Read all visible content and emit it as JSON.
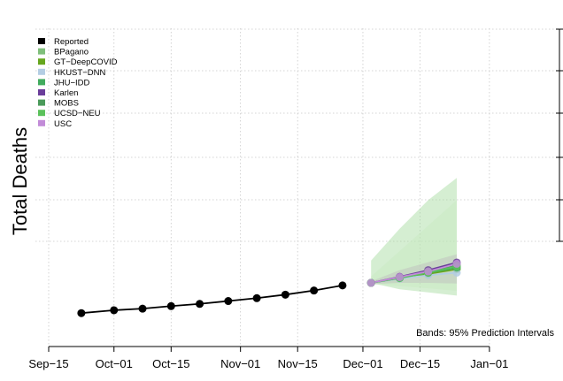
{
  "chart_data": {
    "type": "line",
    "ylabel": "Total Deaths",
    "xlabel": "",
    "x_ticks": [
      "Sep−15",
      "Oct−01",
      "Oct−15",
      "Nov−01",
      "Nov−15",
      "Dec−01",
      "Dec−15",
      "Jan−01"
    ],
    "grid": true,
    "legend_position": "top-left",
    "note": "Bands: 95% Prediction Intervals",
    "reported": {
      "name": "Reported",
      "color": "#000000",
      "x": [
        "2020-09-23",
        "2020-10-01",
        "2020-10-08",
        "2020-10-15",
        "2020-10-22",
        "2020-10-29",
        "2020-11-05",
        "2020-11-12",
        "2020-11-19",
        "2020-11-26"
      ],
      "y": [
        0.105,
        0.114,
        0.119,
        0.127,
        0.134,
        0.143,
        0.152,
        0.163,
        0.176,
        0.192
      ]
    },
    "forecast_x": [
      "2020-12-03",
      "2020-12-10",
      "2020-12-17",
      "2020-12-24"
    ],
    "series": [
      {
        "name": "BPagano",
        "color": "#7fbf7b",
        "values": [
          0.2,
          0.215,
          0.235,
          0.25
        ]
      },
      {
        "name": "GT−DeepCOVID",
        "color": "#66a61e",
        "values": [
          0.2,
          0.214,
          0.228,
          0.243
        ]
      },
      {
        "name": "HKUST−DNN",
        "color": "#b3cde3",
        "values": [
          0.2,
          0.213,
          0.224,
          0.232
        ]
      },
      {
        "name": "JHU−IDD",
        "color": "#41ab5d",
        "values": [
          0.2,
          0.216,
          0.232,
          0.248
        ]
      },
      {
        "name": "Karlen",
        "color": "#6a3d9a",
        "values": [
          0.2,
          0.219,
          0.24,
          0.264
        ]
      },
      {
        "name": "MOBS",
        "color": "#4a9a5a",
        "values": [
          0.2,
          0.216,
          0.236,
          0.256
        ]
      },
      {
        "name": "UCSD−NEU",
        "color": "#5ac15a",
        "values": [
          0.2,
          0.215,
          0.232,
          0.252
        ]
      },
      {
        "name": "USC",
        "color": "#c28cd8",
        "values": [
          0.2,
          0.218,
          0.236,
          0.26
        ]
      }
    ],
    "bands": [
      {
        "name": "JHU−IDD",
        "color": "#a1d99b",
        "lower": [
          0.2,
          0.18,
          0.17,
          0.16
        ],
        "upper": [
          0.27,
          0.37,
          0.46,
          0.53
        ]
      },
      {
        "name": "MOBS",
        "color": "#c7e9c0",
        "lower": [
          0.195,
          0.19,
          0.183,
          0.175
        ],
        "upper": [
          0.22,
          0.3,
          0.38,
          0.46
        ]
      },
      {
        "name": "Karlen",
        "color": "#bdbdbd",
        "lower": [
          0.196,
          0.2,
          0.2,
          0.198
        ],
        "upper": [
          0.205,
          0.24,
          0.265,
          0.29
        ]
      }
    ]
  }
}
